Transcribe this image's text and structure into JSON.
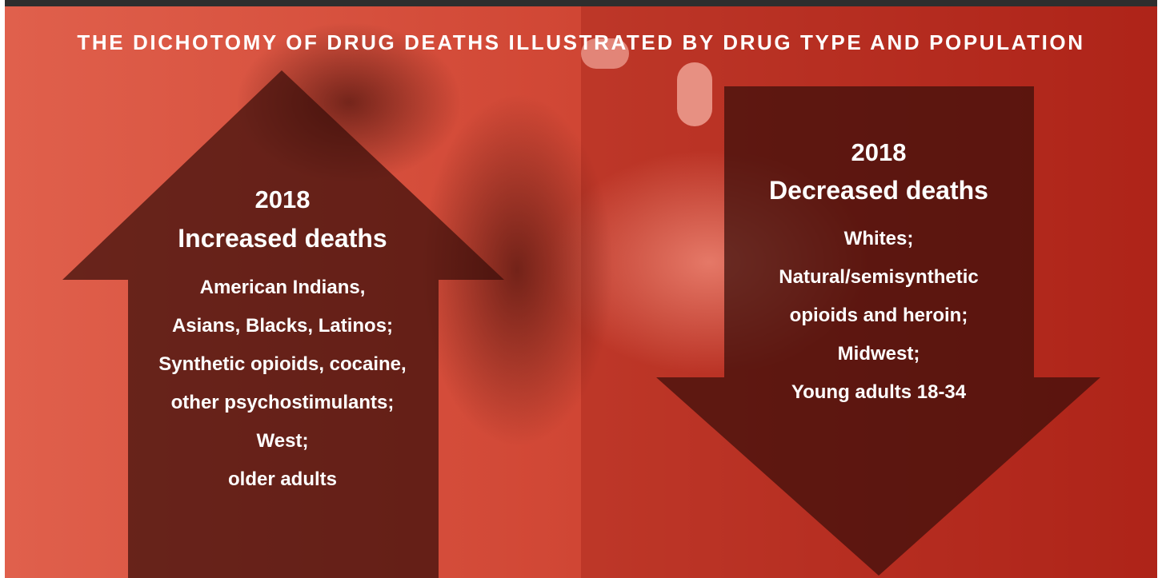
{
  "header": {
    "title": "THE DICHOTOMY OF DRUG DEATHS ILLUSTRATED BY DRUG TYPE AND POPULATION"
  },
  "panels": [
    {
      "year": "2018",
      "heading": "Increased deaths",
      "lines": [
        "American Indians,",
        "Asians, Blacks, Latinos;",
        "Synthetic opioids, cocaine,",
        "other psychostimulants;",
        "West;",
        "older adults"
      ]
    },
    {
      "year": "2018",
      "heading": "Decreased deaths",
      "lines": [
        "Whites;",
        "Natural/semisynthetic",
        "opioids and heroin;",
        "Midwest;",
        "Young adults 18-34"
      ]
    }
  ]
}
